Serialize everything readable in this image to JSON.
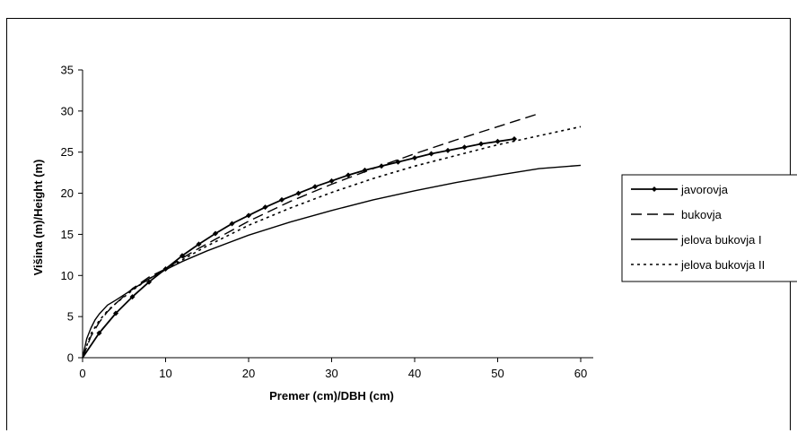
{
  "chart_data": {
    "type": "line",
    "xlabel": "Premer (cm)/DBH (cm)",
    "ylabel": "Višina (m)/Height (m)",
    "xlim": [
      0,
      60
    ],
    "ylim": [
      0,
      35
    ],
    "xticks": [
      0,
      10,
      20,
      30,
      40,
      50,
      60
    ],
    "yticks": [
      0,
      5,
      10,
      15,
      20,
      25,
      30,
      35
    ],
    "grid": false,
    "legend_position": "right",
    "series": [
      {
        "name": "javorovja",
        "style": "solid-marker",
        "x": [
          0,
          2,
          4,
          6,
          8,
          10,
          12,
          14,
          16,
          18,
          20,
          22,
          24,
          26,
          28,
          30,
          32,
          34,
          36,
          38,
          40,
          42,
          44,
          46,
          48,
          50,
          52
        ],
        "y": [
          0,
          3.0,
          5.4,
          7.4,
          9.2,
          10.8,
          12.4,
          13.8,
          15.1,
          16.3,
          17.3,
          18.3,
          19.2,
          20.0,
          20.8,
          21.5,
          22.2,
          22.8,
          23.3,
          23.8,
          24.3,
          24.8,
          25.2,
          25.6,
          26.0,
          26.3,
          26.6
        ]
      },
      {
        "name": "bukovja",
        "style": "dash",
        "x": [
          0,
          1,
          2,
          3,
          4,
          6,
          8,
          10,
          12,
          14,
          16,
          20,
          25,
          30,
          35,
          40,
          45,
          50,
          55
        ],
        "y": [
          0,
          2.6,
          4.3,
          5.6,
          6.6,
          8.4,
          9.8,
          10.8,
          12.1,
          13.3,
          14.4,
          16.6,
          19.0,
          21.1,
          23.0,
          24.8,
          26.5,
          28.1,
          29.7
        ]
      },
      {
        "name": "jelova bukovja I",
        "style": "solid",
        "x": [
          0,
          0.5,
          1,
          1.5,
          2,
          3,
          4,
          6,
          8,
          10,
          12,
          15,
          20,
          25,
          30,
          35,
          40,
          45,
          50,
          55,
          60
        ],
        "y": [
          0,
          2.3,
          3.6,
          4.6,
          5.3,
          6.4,
          7.0,
          8.3,
          9.6,
          10.7,
          11.7,
          13.0,
          14.9,
          16.5,
          17.9,
          19.2,
          20.3,
          21.3,
          22.2,
          23.0,
          23.4
        ]
      },
      {
        "name": "jelova bukovja II",
        "style": "dot",
        "x": [
          0,
          1,
          2,
          3,
          4,
          6,
          8,
          10,
          12,
          15,
          20,
          25,
          30,
          35,
          40,
          45,
          50,
          55,
          60
        ],
        "y": [
          0,
          2.9,
          4.5,
          5.7,
          6.6,
          8.2,
          9.6,
          10.7,
          11.9,
          13.6,
          16.1,
          18.2,
          20.1,
          21.8,
          23.3,
          24.6,
          25.9,
          27.0,
          28.1
        ]
      }
    ]
  }
}
